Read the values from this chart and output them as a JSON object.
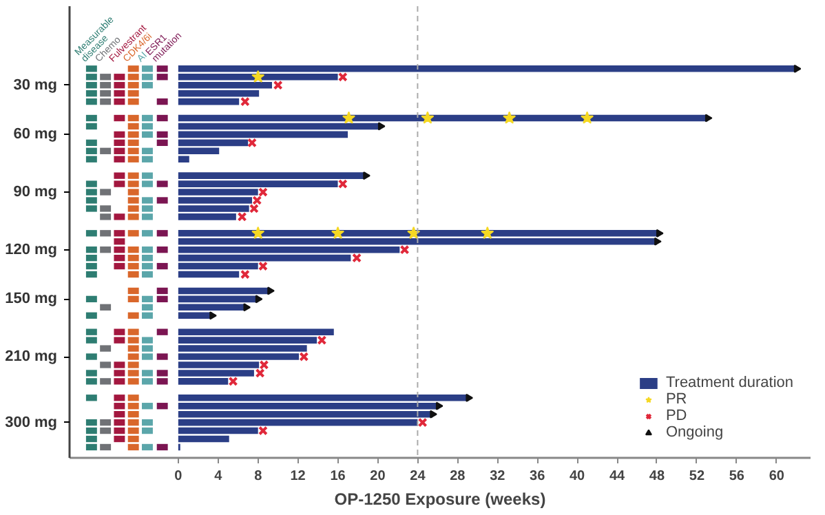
{
  "chart_data": {
    "type": "bar",
    "orientation": "horizontal",
    "xlabel": "OP-1250 Exposure (weeks)",
    "xlim": [
      -10.9,
      63.4
    ],
    "xticks": [
      0,
      4,
      8,
      12,
      16,
      20,
      24,
      28,
      32,
      36,
      40,
      44,
      48,
      52,
      56,
      60
    ],
    "legend": "bottom right",
    "categories": [
      null,
      null,
      "30 mg",
      null,
      null,
      null,
      null,
      null,
      "60 mg",
      null,
      null,
      null,
      null,
      null,
      null,
      "90 mg",
      null,
      null,
      null,
      null,
      null,
      null,
      "120 mg",
      null,
      null,
      null,
      null,
      null,
      "150 mg",
      null,
      null,
      null,
      null,
      null,
      null,
      "210 mg",
      null,
      null,
      null,
      null,
      null,
      null,
      null,
      "300 mg",
      null,
      null,
      null
    ],
    "ref_lines": [
      {
        "axis": "x",
        "value": 24,
        "color": "#aaaaaa",
        "line_style": "dashed"
      }
    ],
    "series": [
      {
        "name": "Treatment duration",
        "type": "bar",
        "color": "#2b3e86",
        "values": [
          62,
          16.0,
          9.4,
          8.1,
          6.1,
          null,
          53.1,
          20.3,
          17.0,
          7.0,
          4.1,
          1.1,
          null,
          18.8,
          16.0,
          8.0,
          7.4,
          7.1,
          5.8,
          null,
          48.2,
          48.0,
          22.2,
          17.3,
          8.0,
          6.1,
          null,
          9.2,
          8.0,
          6.8,
          3.4,
          null,
          15.6,
          13.9,
          12.9,
          12.1,
          8.1,
          7.6,
          5.0,
          null,
          29.1,
          26.1,
          25.5,
          24.0,
          8.0,
          5.1,
          0.2
        ]
      },
      {
        "name": "PR",
        "type": "scatter",
        "marker": "star",
        "color": "#f5d823",
        "values": [
          null,
          8.0,
          null,
          null,
          null,
          null,
          17.1,
          null,
          null,
          null,
          null,
          null,
          null,
          null,
          null,
          null,
          null,
          null,
          null,
          null,
          8.0,
          null,
          null,
          null,
          null,
          null,
          null,
          null,
          null,
          null,
          null,
          null,
          null,
          null,
          null,
          null,
          null,
          null,
          null,
          null,
          null,
          null,
          null,
          null,
          null,
          null,
          null
        ]
      },
      {
        "type": "scatter",
        "marker": "star",
        "color": "#f5d823",
        "values": [
          null,
          null,
          null,
          null,
          null,
          null,
          25.0,
          null,
          null,
          null,
          null,
          null,
          null,
          null,
          null,
          null,
          null,
          null,
          null,
          null,
          16.0,
          null,
          null,
          null,
          null,
          null,
          null,
          null,
          null,
          null,
          null,
          null,
          null,
          null,
          null,
          null,
          null,
          null,
          null,
          null,
          null,
          null,
          null,
          null,
          null,
          null,
          null
        ]
      },
      {
        "type": "scatter",
        "marker": "star",
        "color": "#f5d823",
        "values": [
          null,
          null,
          null,
          null,
          null,
          null,
          33.2,
          null,
          null,
          null,
          null,
          null,
          null,
          null,
          null,
          null,
          null,
          null,
          null,
          null,
          23.6,
          null,
          null,
          null,
          null,
          null,
          null,
          null,
          null,
          null,
          null,
          null,
          null,
          null,
          null,
          null,
          null,
          null,
          null,
          null,
          null,
          null,
          null,
          null,
          null,
          null,
          null
        ]
      },
      {
        "type": "scatter",
        "marker": "star",
        "color": "#f5d823",
        "values": [
          null,
          null,
          null,
          null,
          null,
          null,
          41.0,
          null,
          null,
          null,
          null,
          null,
          null,
          null,
          null,
          null,
          null,
          null,
          null,
          null,
          31.0,
          null,
          null,
          null,
          null,
          null,
          null,
          null,
          null,
          null,
          null,
          null,
          null,
          null,
          null,
          null,
          null,
          null,
          null,
          null,
          null,
          null,
          null,
          null,
          null,
          null,
          null
        ]
      },
      {
        "name": "PD",
        "type": "scatter",
        "marker": "cross",
        "color": "#e0283a",
        "values": [
          null,
          16.5,
          10.0,
          null,
          6.7,
          null,
          null,
          null,
          null,
          7.4,
          null,
          null,
          null,
          null,
          16.5,
          8.5,
          7.9,
          7.6,
          6.4,
          null,
          null,
          null,
          22.7,
          17.9,
          8.5,
          6.7,
          null,
          null,
          null,
          null,
          null,
          null,
          null,
          14.4,
          null,
          12.6,
          8.6,
          8.2,
          5.5,
          null,
          null,
          null,
          null,
          24.5,
          8.5,
          null,
          null
        ]
      },
      {
        "name": "Ongoing",
        "type": "scatter",
        "marker": "triangle",
        "color": "#111111",
        "values": [
          62,
          null,
          null,
          null,
          null,
          null,
          53.1,
          20.3,
          null,
          null,
          null,
          null,
          null,
          18.8,
          null,
          null,
          null,
          null,
          null,
          null,
          48.2,
          48.0,
          null,
          null,
          null,
          null,
          null,
          9.2,
          8.0,
          6.8,
          3.4,
          null,
          null,
          null,
          null,
          null,
          null,
          null,
          null,
          null,
          29.1,
          26.1,
          25.5,
          null,
          null,
          null,
          null
        ]
      },
      {
        "name": "Measurable disease",
        "type": "scatter",
        "marker": "square",
        "color": "#2e7d72",
        "values": [
          -8.7,
          -8.7,
          -8.7,
          -8.7,
          -8.7,
          null,
          -8.7,
          -8.7,
          null,
          -8.7,
          -8.7,
          -8.7,
          null,
          null,
          -8.7,
          -8.7,
          -8.7,
          -8.7,
          null,
          null,
          -8.7,
          null,
          -8.7,
          -8.7,
          -8.7,
          -8.7,
          null,
          null,
          -8.7,
          null,
          -8.7,
          null,
          -8.7,
          -8.7,
          null,
          -8.7,
          null,
          -8.7,
          -8.7,
          null,
          -8.7,
          null,
          null,
          -8.7,
          -8.7,
          -8.7,
          -8.7
        ]
      },
      {
        "name": "Chemo",
        "type": "scatter",
        "marker": "square",
        "color": "#707276",
        "values": [
          null,
          -7.3,
          -7.3,
          -7.3,
          -7.3,
          null,
          null,
          null,
          null,
          null,
          -7.3,
          null,
          null,
          null,
          null,
          -7.3,
          null,
          -7.3,
          -7.3,
          null,
          -7.3,
          null,
          -7.3,
          null,
          null,
          null,
          null,
          null,
          null,
          -7.3,
          null,
          null,
          null,
          null,
          -7.3,
          null,
          -7.3,
          null,
          -7.3,
          null,
          null,
          null,
          null,
          -7.3,
          -7.3,
          null,
          -7.3
        ]
      },
      {
        "name": "Fulvestrant",
        "type": "scatter",
        "marker": "square",
        "color": "#a3173f",
        "values": [
          null,
          -5.9,
          -5.9,
          -5.9,
          -5.9,
          null,
          -5.9,
          null,
          -5.9,
          -5.9,
          -5.9,
          -5.9,
          null,
          -5.9,
          -5.9,
          null,
          null,
          null,
          -5.9,
          null,
          -5.9,
          -5.9,
          -5.9,
          -5.9,
          -5.9,
          null,
          null,
          null,
          null,
          null,
          null,
          null,
          -5.9,
          -5.9,
          null,
          null,
          -5.9,
          -5.9,
          -5.9,
          null,
          -5.9,
          -5.9,
          -5.9,
          -5.9,
          -5.9,
          -5.9,
          null
        ]
      },
      {
        "name": "CDK4/6i",
        "type": "scatter",
        "marker": "square",
        "color": "#d9672b",
        "values": [
          -4.5,
          -4.5,
          -4.5,
          -4.5,
          -4.5,
          null,
          -4.5,
          -4.5,
          -4.5,
          -4.5,
          -4.5,
          -4.5,
          null,
          -4.5,
          -4.5,
          -4.5,
          -4.5,
          -4.5,
          -4.5,
          null,
          -4.5,
          null,
          -4.5,
          -4.5,
          -4.5,
          -4.5,
          null,
          -4.5,
          -4.5,
          null,
          -4.5,
          null,
          -4.5,
          -4.5,
          -4.5,
          -4.5,
          -4.5,
          -4.5,
          -4.5,
          null,
          -4.5,
          -4.5,
          -4.5,
          -4.5,
          -4.5,
          -4.5,
          -4.5
        ]
      },
      {
        "name": "AI",
        "type": "scatter",
        "marker": "square",
        "color": "#5ba6aa",
        "values": [
          -3.1,
          -3.1,
          -3.1,
          null,
          null,
          null,
          -3.1,
          -3.1,
          -3.1,
          null,
          -3.1,
          -3.1,
          null,
          -3.1,
          -3.1,
          null,
          -3.1,
          -3.1,
          -3.1,
          null,
          -3.1,
          null,
          -3.1,
          -3.1,
          -3.1,
          -3.1,
          null,
          null,
          -3.1,
          -3.1,
          -3.1,
          null,
          null,
          -3.1,
          -3.1,
          -3.1,
          null,
          -3.1,
          -3.1,
          null,
          null,
          -3.1,
          null,
          -3.1,
          -3.1,
          null,
          -3.1
        ]
      },
      {
        "name": "ESR1 mutation",
        "type": "scatter",
        "marker": "square",
        "color": "#7b1552",
        "values": [
          -1.6,
          -1.6,
          null,
          null,
          -1.6,
          null,
          -1.6,
          null,
          -1.6,
          -1.6,
          null,
          null,
          null,
          null,
          -1.6,
          null,
          -1.6,
          null,
          null,
          null,
          -1.6,
          null,
          -1.6,
          null,
          -1.6,
          null,
          null,
          -1.6,
          -1.6,
          null,
          null,
          null,
          -1.6,
          null,
          null,
          -1.6,
          null,
          -1.6,
          -1.6,
          null,
          null,
          -1.6,
          null,
          null,
          null,
          null,
          -1.6
        ]
      }
    ]
  }
}
